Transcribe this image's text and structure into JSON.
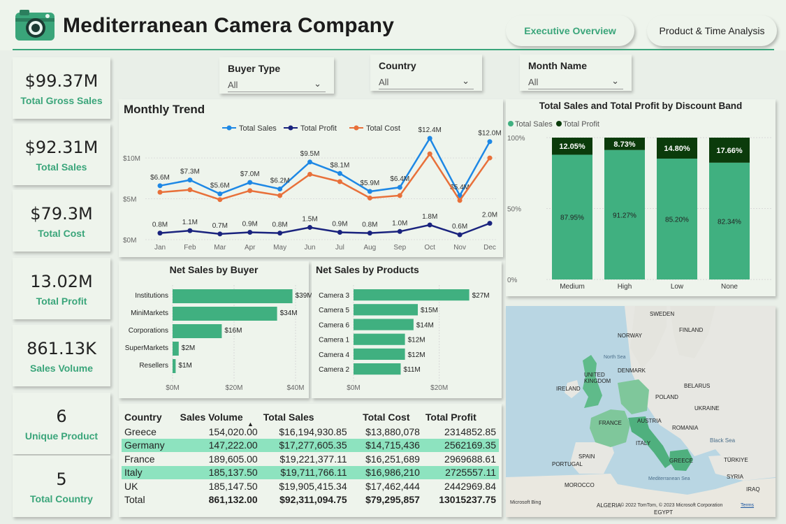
{
  "app": {
    "title": "Mediterranean Camera Company"
  },
  "nav": {
    "executive": "Executive Overview",
    "product_time": "Product & Time Analysis"
  },
  "kpis": [
    {
      "value": "$99.37M",
      "label": "Total Gross Sales"
    },
    {
      "value": "$92.31M",
      "label": "Total Sales"
    },
    {
      "value": "$79.3M",
      "label": "Total Cost"
    },
    {
      "value": "13.02M",
      "label": "Total Profit"
    },
    {
      "value": "861.13K",
      "label": "Sales Volume"
    },
    {
      "value": "6",
      "label": "Unique Product"
    },
    {
      "value": "5",
      "label": "Total Country"
    }
  ],
  "slicers": [
    {
      "title": "Buyer Type",
      "value": "All"
    },
    {
      "title": "Country",
      "value": "All"
    },
    {
      "title": "Month Name",
      "value": "All"
    }
  ],
  "colors": {
    "accent": "#3aa57a",
    "sales": "#1e88e5",
    "profit": "#1a237e",
    "cost": "#e8703a",
    "dark_green": "#0b3b0b",
    "bar": "#40b080"
  },
  "chart_data": [
    {
      "type": "line",
      "title": "Monthly Trend",
      "x": [
        "Jan",
        "Feb",
        "Mar",
        "Apr",
        "May",
        "Jun",
        "Jul",
        "Aug",
        "Sep",
        "Oct",
        "Nov",
        "Dec"
      ],
      "yticks": [
        "$0M",
        "$5M",
        "$10M"
      ],
      "ylim": [
        0,
        13
      ],
      "legend": "top",
      "series": [
        {
          "name": "Total Sales",
          "values": [
            6.6,
            7.3,
            5.6,
            7.0,
            6.2,
            9.5,
            8.1,
            5.9,
            6.4,
            12.4,
            5.4,
            12.0
          ],
          "labels": [
            "$6.6M",
            "$7.3M",
            "$5.6M",
            "$7.0M",
            "$6.2M",
            "$9.5M",
            "$8.1M",
            "$5.9M",
            "$6.4M",
            "$12.4M",
            "$5.4M",
            "$12.0M"
          ]
        },
        {
          "name": "Total Profit",
          "values": [
            0.8,
            1.1,
            0.7,
            0.9,
            0.8,
            1.5,
            0.9,
            0.8,
            1.0,
            1.8,
            0.6,
            2.0
          ],
          "labels": [
            "0.8M",
            "1.1M",
            "0.7M",
            "0.9M",
            "0.8M",
            "1.5M",
            "0.9M",
            "0.8M",
            "1.0M",
            "1.8M",
            "0.6M",
            "2.0M"
          ]
        },
        {
          "name": "Total Cost",
          "values": [
            5.8,
            6.1,
            4.9,
            6.0,
            5.4,
            8.0,
            7.1,
            5.1,
            5.4,
            10.5,
            4.8,
            10.0
          ]
        }
      ]
    },
    {
      "type": "bar",
      "title": "Total Sales and Total Profit by Discount Band",
      "categories": [
        "Medium",
        "High",
        "Low",
        "None"
      ],
      "legend": "top-left",
      "yticks": [
        "0%",
        "50%",
        "100%"
      ],
      "series": [
        {
          "name": "Total Sales",
          "values": [
            87.95,
            91.27,
            85.2,
            82.34
          ],
          "labels": [
            "87.95%",
            "91.27%",
            "85.20%",
            "82.34%"
          ]
        },
        {
          "name": "Total Profit",
          "values": [
            12.05,
            8.73,
            14.8,
            17.66
          ],
          "labels": [
            "12.05%",
            "8.73%",
            "14.80%",
            "17.66%"
          ]
        }
      ]
    },
    {
      "type": "bar",
      "title": "Net Sales by Buyer",
      "categories": [
        "Institutions",
        "MiniMarkets",
        "Corporations",
        "SuperMarkets",
        "Resellers"
      ],
      "values": [
        39,
        34,
        16,
        2,
        1
      ],
      "labels": [
        "$39M",
        "$34M",
        "$16M",
        "$2M",
        "$1M"
      ],
      "xticks": [
        "$0M",
        "$20M",
        "$40M"
      ],
      "xlim": [
        0,
        40
      ]
    },
    {
      "type": "bar",
      "title": "Net Sales by Products",
      "categories": [
        "Camera 3",
        "Camera 5",
        "Camera 6",
        "Camera 1",
        "Camera 4",
        "Camera 2"
      ],
      "values": [
        27,
        15,
        14,
        12,
        12,
        11
      ],
      "labels": [
        "$27M",
        "$15M",
        "$14M",
        "$12M",
        "$12M",
        "$11M"
      ],
      "xticks": [
        "$0M",
        "$20M"
      ],
      "xlim": [
        0,
        30
      ]
    }
  ],
  "table": {
    "headers": [
      "Country",
      "Sales Volume",
      "Total Sales",
      "Total Cost",
      "Total Profit"
    ],
    "rows": [
      [
        "Greece",
        "154,020.00",
        "$16,194,930.85",
        "$13,880,078",
        "2314852.85"
      ],
      [
        "Germany",
        "147,222.00",
        "$17,277,605.35",
        "$14,715,436",
        "2562169.35"
      ],
      [
        "France",
        "189,605.00",
        "$19,221,377.11",
        "$16,251,689",
        "2969688.61"
      ],
      [
        "Italy",
        "185,137.50",
        "$19,711,766.11",
        "$16,986,210",
        "2725557.11"
      ],
      [
        "UK",
        "185,147.50",
        "$19,905,415.34",
        "$17,462,444",
        "2442969.84"
      ]
    ],
    "total": [
      "Total",
      "861,132.00",
      "$92,311,094.75",
      "$79,295,857",
      "13015237.75"
    ]
  },
  "map": {
    "labels": {
      "sweden": "SWEDEN",
      "finland": "FINLAND",
      "norway": "NORWAY",
      "north_sea": "North Sea",
      "denmark": "DENMARK",
      "uk": "UNITED KINGDOM",
      "ireland": "IRELAND",
      "belarus": "BELARUS",
      "poland": "POLAND",
      "ukraine": "UKRAINE",
      "france": "FRANCE",
      "austria": "AUSTRIA",
      "romania": "ROMANIA",
      "italy": "ITALY",
      "black_sea": "Black Sea",
      "spain": "SPAIN",
      "portugal": "PORTUGAL",
      "greece": "GREECE",
      "turkiye": "TÜRKIYE",
      "syria": "SYRIA",
      "morocco": "MOROCCO",
      "med_sea": "Mediterranean Sea",
      "iraq": "IRAQ",
      "algeria": "ALGERIA",
      "egypt": "EGYPT"
    },
    "bing": "Microsoft Bing",
    "copyright": "© 2022 TomTom, © 2023 Microsoft Corporation",
    "terms": "Terms"
  }
}
